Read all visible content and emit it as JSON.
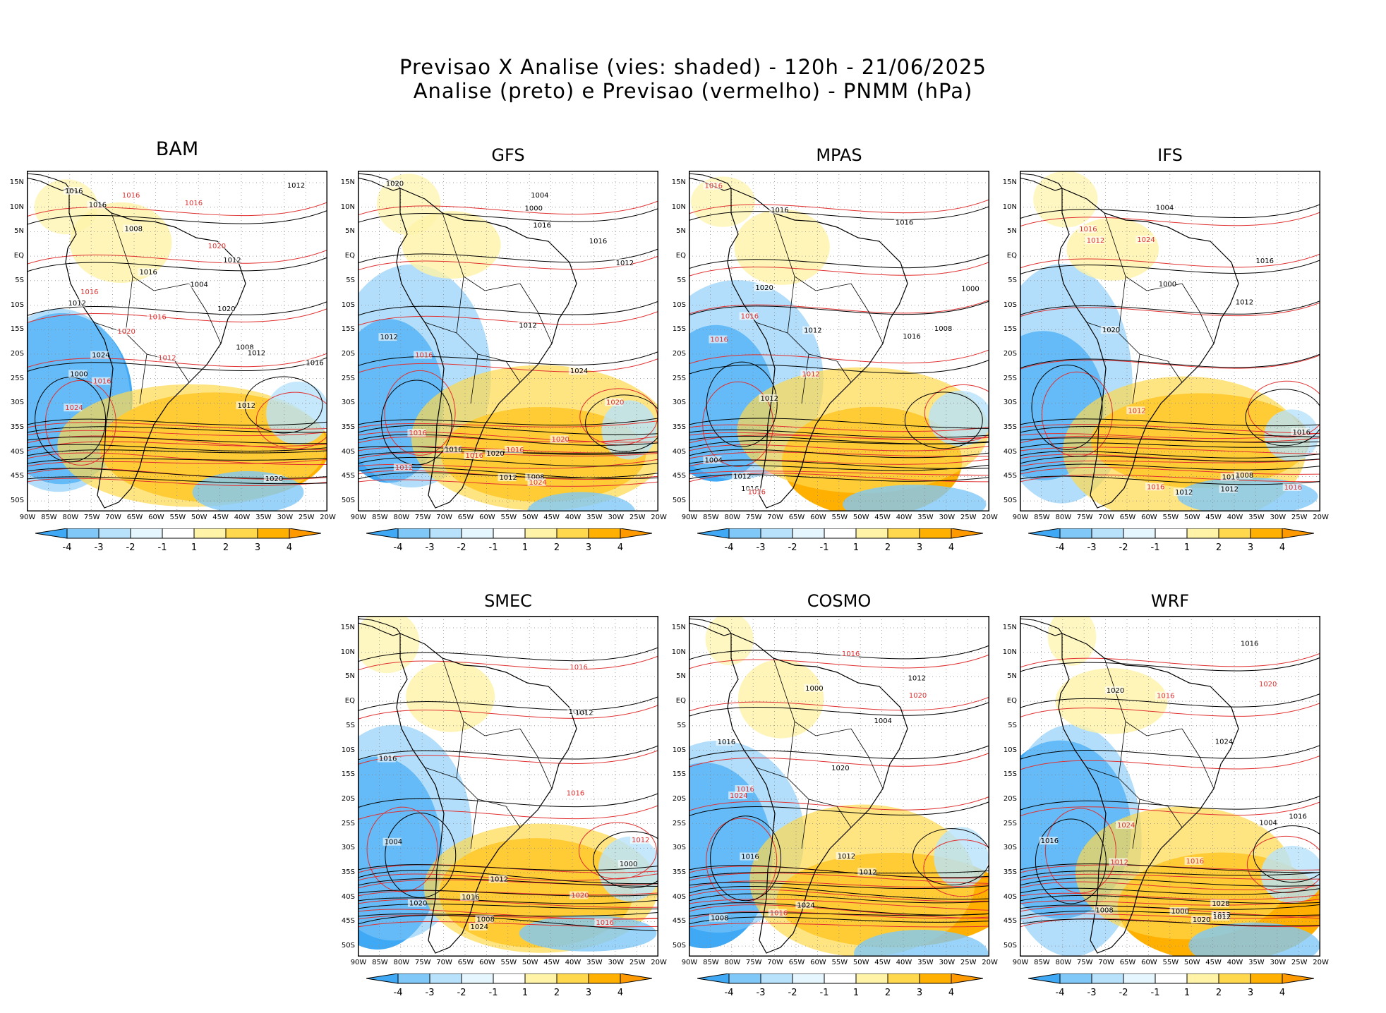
{
  "header": {
    "line1": "Previsao X Analise (vies: shaded) - 120h - 21/06/2025",
    "line2": "Analise (preto) e Previsao (vermelho) - PNMM (hPa)"
  },
  "axes": {
    "lat_labels": [
      "15N",
      "10N",
      "5N",
      "EQ",
      "5S",
      "10S",
      "15S",
      "20S",
      "25S",
      "30S",
      "35S",
      "40S",
      "45S",
      "50S"
    ],
    "lon_labels": [
      "90W",
      "85W",
      "80W",
      "75W",
      "70W",
      "65W",
      "60W",
      "55W",
      "50W",
      "45W",
      "40W",
      "35W",
      "30W",
      "25W",
      "20W"
    ]
  },
  "colorbar": {
    "ticks": [
      "-4",
      "-3",
      "-2",
      "-1",
      "1",
      "2",
      "3",
      "4"
    ],
    "colors": [
      "#3fa9f5",
      "#7fc8f8",
      "#b8e2fb",
      "#e6f6fe",
      "#ffffff",
      "#fff3a8",
      "#ffd84d",
      "#ffb000",
      "#ff9900"
    ]
  },
  "colors": {
    "analysis_contour": "#000000",
    "forecast_contour": "#e03030",
    "grid": "#888888"
  },
  "panels": [
    {
      "id": "bam",
      "name": "BAM",
      "labels": {
        "black": [
          "1020",
          "1012",
          "1016",
          "1016",
          "1012",
          "1008",
          "1012",
          "1020",
          "1012",
          "1016",
          "1024",
          "1016",
          "1012",
          "1008",
          "1004",
          "1000"
        ],
        "red": [
          "1016",
          "1016",
          "1012",
          "1016",
          "1020",
          "1024",
          "1020",
          "1016",
          "1016"
        ]
      }
    },
    {
      "id": "gfs",
      "name": "GFS",
      "labels": {
        "black": [
          "1020",
          "1012",
          "1016",
          "1016",
          "1012",
          "1020",
          "1024",
          "1012",
          "1016",
          "1012",
          "1008",
          "1004",
          "1000"
        ],
        "red": [
          "1020",
          "1016",
          "1016",
          "1012",
          "1020",
          "1024",
          "1016",
          "1016"
        ]
      }
    },
    {
      "id": "mpas",
      "name": "MPAS",
      "labels": {
        "black": [
          "1020",
          "1016",
          "1012",
          "1016",
          "1016",
          "1012",
          "1016",
          "1012",
          "1008",
          "1004",
          "1000"
        ],
        "red": [
          "1016",
          "1012",
          "1016",
          "1016",
          "1016"
        ]
      }
    },
    {
      "id": "ifs",
      "name": "IFS",
      "labels": {
        "black": [
          "1016",
          "1012",
          "1016",
          "1012",
          "1020",
          "1016",
          "1012",
          "1008",
          "1004",
          "1000"
        ],
        "red": [
          "1012",
          "1016",
          "1016",
          "1024",
          "1016",
          "1012"
        ]
      }
    },
    {
      "id": "smec",
      "name": "SMEC",
      "labels": {
        "black": [
          "1016",
          "1016",
          "1012",
          "1020",
          "1024",
          "1016",
          "1012",
          "1008",
          "1004",
          "1000"
        ],
        "red": [
          "1016",
          "1016",
          "1012",
          "1020",
          "1016"
        ]
      }
    },
    {
      "id": "cosmo",
      "name": "COSMO",
      "labels": {
        "black": [
          "1012",
          "1016",
          "1016",
          "1012",
          "1020",
          "1024",
          "1012",
          "1008",
          "1004",
          "1000"
        ],
        "red": [
          "1016",
          "1016",
          "1020",
          "1024",
          "1016"
        ]
      }
    },
    {
      "id": "wrf",
      "name": "WRF",
      "labels": {
        "black": [
          "1020",
          "1016",
          "1012",
          "1016",
          "1020",
          "1024",
          "1016",
          "1012",
          "1008",
          "1004",
          "1000",
          "1028"
        ],
        "red": [
          "1016",
          "1016",
          "1024",
          "1012",
          "1020"
        ]
      }
    }
  ]
}
